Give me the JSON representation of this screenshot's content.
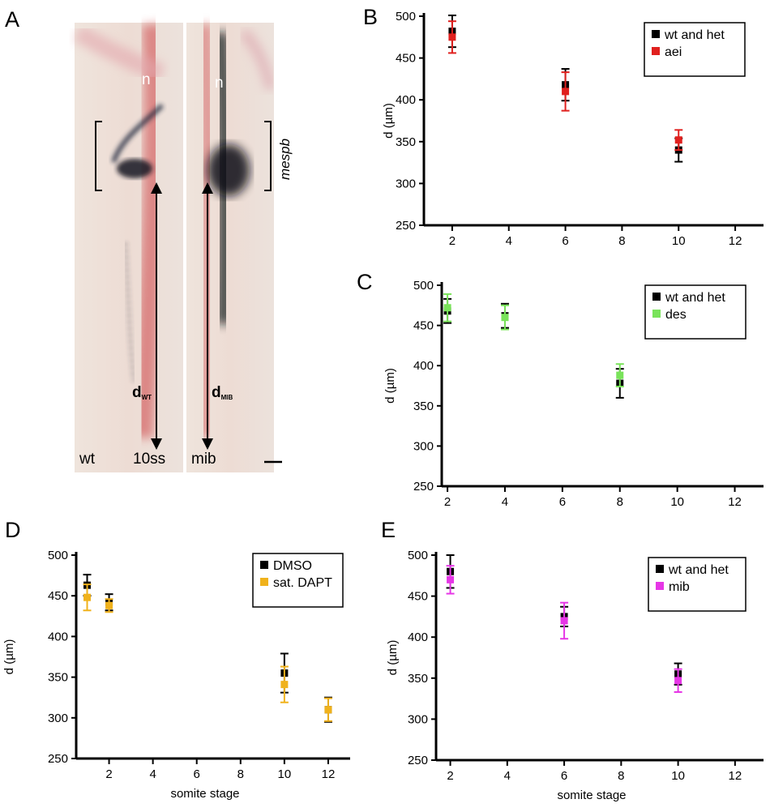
{
  "panelA": {
    "label": "A",
    "notochord_left": "n",
    "notochord_right": "n",
    "gene": "mespb",
    "d_wt_main": "d",
    "d_wt_sub": "WT",
    "d_mib_main": "d",
    "d_mib_sub": "MIB",
    "label_wt": "wt",
    "label_stage": "10ss",
    "label_mib": "mib"
  },
  "colors": {
    "black": "#000000",
    "aei": "#e0201e",
    "des": "#79e35a",
    "dapt": "#f0b21c",
    "mib": "#e636e6"
  },
  "chart_data": [
    {
      "id": "B",
      "panel_label": "B",
      "type": "scatter",
      "xlabel": "",
      "ylabel": "d (µm)",
      "xlim": [
        1,
        13
      ],
      "ylim": [
        250,
        500
      ],
      "xticks": [
        2,
        4,
        6,
        8,
        10,
        12
      ],
      "yticks": [
        250,
        300,
        350,
        400,
        450,
        500
      ],
      "legend_position": "top-right",
      "series": [
        {
          "name": "wt and het",
          "color": "#000000",
          "points": [
            {
              "x": 2,
              "y": 482,
              "err": 19
            },
            {
              "x": 6,
              "y": 418,
              "err": 19
            },
            {
              "x": 10,
              "y": 340,
              "err": 14
            }
          ]
        },
        {
          "name": "aei",
          "color": "#e0201e",
          "points": [
            {
              "x": 2,
              "y": 475,
              "err": 19
            },
            {
              "x": 6,
              "y": 410,
              "err": 23
            },
            {
              "x": 10,
              "y": 352,
              "err": 12
            }
          ]
        }
      ]
    },
    {
      "id": "C",
      "panel_label": "C",
      "type": "scatter",
      "xlabel": "",
      "ylabel": "d (µm)",
      "xlim": [
        1.8,
        13
      ],
      "ylim": [
        250,
        500
      ],
      "xticks": [
        2,
        4,
        6,
        8,
        10,
        12
      ],
      "yticks": [
        250,
        300,
        350,
        400,
        450,
        500
      ],
      "legend_position": "top-right",
      "series": [
        {
          "name": "wt and het",
          "color": "#000000",
          "points": [
            {
              "x": 2,
              "y": 468,
              "err": 15
            },
            {
              "x": 4,
              "y": 462,
              "err": 15
            },
            {
              "x": 8,
              "y": 378,
              "err": 18
            }
          ]
        },
        {
          "name": "des",
          "color": "#79e35a",
          "points": [
            {
              "x": 2,
              "y": 472,
              "err": 17
            },
            {
              "x": 4,
              "y": 460,
              "err": 15
            },
            {
              "x": 8,
              "y": 388,
              "err": 14
            }
          ]
        }
      ]
    },
    {
      "id": "D",
      "panel_label": "D",
      "type": "scatter",
      "xlabel": "somite stage",
      "ylabel": "d (µm)",
      "xlim": [
        0.5,
        13
      ],
      "ylim": [
        250,
        500
      ],
      "xticks": [
        2,
        4,
        6,
        8,
        10,
        12
      ],
      "yticks": [
        250,
        300,
        350,
        400,
        450,
        500
      ],
      "legend_position": "top-right",
      "series": [
        {
          "name": "DMSO",
          "color": "#000000",
          "points": [
            {
              "x": 1,
              "y": 463,
              "err": 13
            },
            {
              "x": 2,
              "y": 442,
              "err": 10
            },
            {
              "x": 10,
              "y": 355,
              "err": 24
            },
            {
              "x": 12,
              "y": 310,
              "err": 15
            }
          ]
        },
        {
          "name": "sat. DAPT",
          "color": "#f0b21c",
          "points": [
            {
              "x": 1,
              "y": 448,
              "err": 16
            },
            {
              "x": 2,
              "y": 438,
              "err": 8
            },
            {
              "x": 10,
              "y": 341,
              "err": 22
            },
            {
              "x": 12,
              "y": 310,
              "err": 14
            }
          ]
        }
      ]
    },
    {
      "id": "E",
      "panel_label": "E",
      "type": "scatter",
      "xlabel": "somite stage",
      "ylabel": "d (µm)",
      "xlim": [
        1.5,
        13
      ],
      "ylim": [
        250,
        500
      ],
      "xticks": [
        2,
        4,
        6,
        8,
        10,
        12
      ],
      "yticks": [
        250,
        300,
        350,
        400,
        450,
        500
      ],
      "legend_position": "top-right",
      "series": [
        {
          "name": "wt and het",
          "color": "#000000",
          "points": [
            {
              "x": 2,
              "y": 480,
              "err": 20
            },
            {
              "x": 6,
              "y": 425,
              "err": 12
            },
            {
              "x": 10,
              "y": 355,
              "err": 13
            }
          ]
        },
        {
          "name": "mib",
          "color": "#e636e6",
          "points": [
            {
              "x": 2,
              "y": 470,
              "err": 17
            },
            {
              "x": 6,
              "y": 420,
              "err": 22
            },
            {
              "x": 10,
              "y": 347,
              "err": 14
            }
          ]
        }
      ]
    }
  ]
}
